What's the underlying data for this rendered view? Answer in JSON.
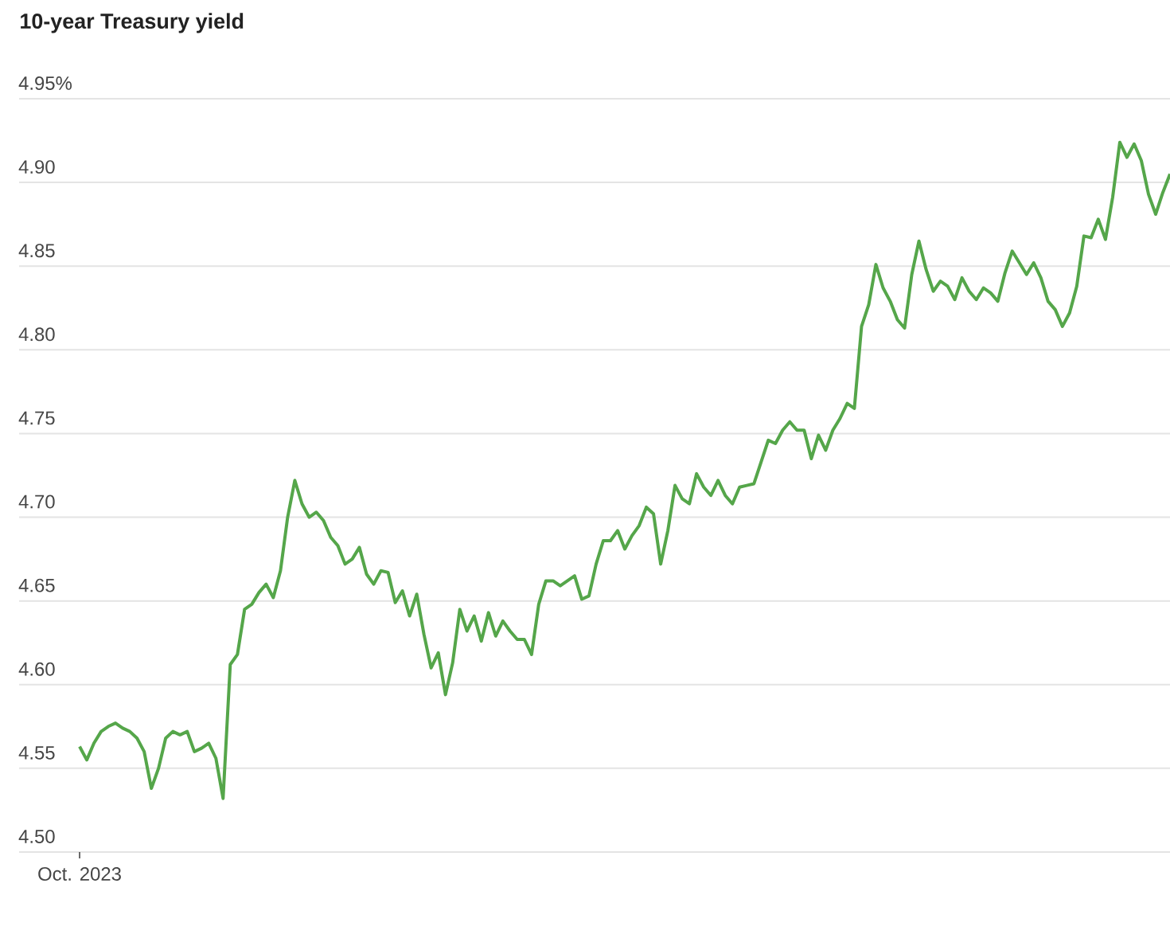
{
  "chart_data": {
    "type": "line",
    "title": "10-year Treasury yield",
    "categories": [
      "Oct. 2023",
      null,
      null,
      null,
      null,
      null,
      null,
      null,
      null,
      null,
      null,
      null,
      null,
      null,
      null,
      null,
      null,
      null,
      null,
      null,
      null,
      null,
      null,
      null,
      null,
      null,
      null,
      null,
      null,
      null,
      null,
      null,
      null,
      null,
      null,
      null,
      null,
      null,
      null,
      null,
      null,
      null,
      null,
      null,
      null,
      null,
      null,
      null,
      null,
      null,
      null,
      null,
      null,
      null,
      null,
      null,
      null,
      null,
      null,
      null,
      null,
      null,
      null,
      null,
      null,
      null,
      null,
      null,
      null,
      null,
      null,
      null,
      null,
      null,
      null,
      null,
      null,
      null,
      null,
      null,
      null,
      null,
      null,
      null,
      null,
      null,
      null,
      null,
      null,
      null,
      null,
      null,
      null,
      null,
      null,
      null,
      null,
      null,
      null,
      null,
      null,
      null,
      null,
      null,
      null,
      null,
      null,
      null,
      null,
      null,
      null,
      null,
      null,
      null,
      null,
      null,
      null,
      null,
      null,
      null,
      null,
      null,
      null,
      null,
      null,
      null,
      null,
      null,
      null,
      null,
      null,
      null,
      null,
      null,
      null,
      null,
      null,
      null,
      null,
      null,
      null,
      null,
      null,
      null,
      null,
      null,
      null,
      null,
      null,
      null,
      null,
      null,
      null
    ],
    "values": [
      4.563,
      4.555,
      4.565,
      4.572,
      4.575,
      4.577,
      4.574,
      4.572,
      4.568,
      4.56,
      4.538,
      4.55,
      4.568,
      4.572,
      4.57,
      4.572,
      4.56,
      4.562,
      4.565,
      4.556,
      4.532,
      4.612,
      4.618,
      4.645,
      4.648,
      4.655,
      4.66,
      4.652,
      4.668,
      4.7,
      4.722,
      4.708,
      4.7,
      4.703,
      4.698,
      4.688,
      4.683,
      4.672,
      4.675,
      4.682,
      4.666,
      4.66,
      4.668,
      4.667,
      4.649,
      4.656,
      4.641,
      4.654,
      4.63,
      4.61,
      4.619,
      4.594,
      4.613,
      4.645,
      4.632,
      4.641,
      4.626,
      4.643,
      4.629,
      4.638,
      4.632,
      4.627,
      4.627,
      4.618,
      4.648,
      4.662,
      4.662,
      4.659,
      4.662,
      4.665,
      4.651,
      4.653,
      4.672,
      4.686,
      4.686,
      4.692,
      4.681,
      4.689,
      4.695,
      4.706,
      4.702,
      4.672,
      4.692,
      4.719,
      4.711,
      4.708,
      4.726,
      4.718,
      4.713,
      4.722,
      4.713,
      4.708,
      4.718,
      4.719,
      4.72,
      4.733,
      4.746,
      4.744,
      4.752,
      4.757,
      4.752,
      4.752,
      4.735,
      4.749,
      4.74,
      4.752,
      4.759,
      4.768,
      4.765,
      4.814,
      4.827,
      4.851,
      4.837,
      4.829,
      4.818,
      4.813,
      4.845,
      4.865,
      4.848,
      4.835,
      4.841,
      4.838,
      4.83,
      4.843,
      4.835,
      4.83,
      4.837,
      4.834,
      4.829,
      4.846,
      4.859,
      4.852,
      4.845,
      4.852,
      4.843,
      4.829,
      4.824,
      4.814,
      4.822,
      4.838,
      4.868,
      4.867,
      4.878,
      4.866,
      4.891,
      4.924,
      4.915,
      4.923,
      4.913,
      4.893,
      4.881,
      4.894,
      4.905
    ],
    "color": "#55a64a",
    "ylim": [
      4.5,
      4.95
    ],
    "yticks": [
      {
        "value": 4.5,
        "label": "4.50"
      },
      4.55,
      {
        "value": 4.6,
        "label": "4.60"
      },
      4.65,
      {
        "value": 4.7,
        "label": "4.70"
      },
      4.75,
      {
        "value": 4.8,
        "label": "4.80"
      },
      4.85,
      {
        "value": 4.9,
        "label": "4.90"
      },
      {
        "value": 4.95,
        "label": "4.95%"
      }
    ],
    "grid": "y"
  }
}
